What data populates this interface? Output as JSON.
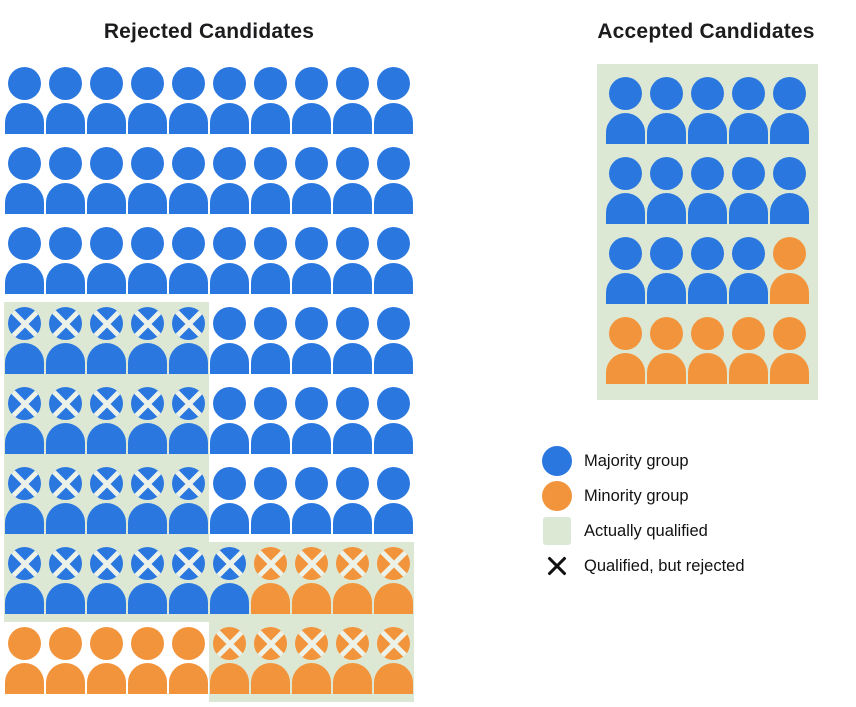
{
  "rejected": {
    "title": "Rejected Candidates",
    "rows": [
      [
        "b",
        "b",
        "b",
        "b",
        "b",
        "b",
        "b",
        "b",
        "b",
        "b"
      ],
      [
        "b",
        "b",
        "b",
        "b",
        "b",
        "b",
        "b",
        "b",
        "b",
        "b"
      ],
      [
        "b",
        "b",
        "b",
        "b",
        "b",
        "b",
        "b",
        "b",
        "b",
        "b"
      ],
      [
        "bxq",
        "bxq",
        "bxq",
        "bxq",
        "bxq",
        "b",
        "b",
        "b",
        "b",
        "b"
      ],
      [
        "bxq",
        "bxq",
        "bxq",
        "bxq",
        "bxq",
        "b",
        "b",
        "b",
        "b",
        "b"
      ],
      [
        "bxq",
        "bxq",
        "bxq",
        "bxq",
        "bxq",
        "b",
        "b",
        "b",
        "b",
        "b"
      ],
      [
        "bxq",
        "bxq",
        "bxq",
        "bxq",
        "bxq",
        "bxq",
        "oxq",
        "oxq",
        "oxq",
        "oxq"
      ],
      [
        "o",
        "o",
        "o",
        "o",
        "o",
        "oxq",
        "oxq",
        "oxq",
        "oxq",
        "oxq"
      ]
    ]
  },
  "accepted": {
    "title": "Accepted Candidates",
    "rows": [
      [
        "b",
        "b",
        "b",
        "b",
        "b"
      ],
      [
        "b",
        "b",
        "b",
        "b",
        "b"
      ],
      [
        "b",
        "b",
        "b",
        "b",
        "o"
      ],
      [
        "o",
        "o",
        "o",
        "o",
        "o"
      ]
    ]
  },
  "legend": {
    "items": [
      {
        "icon": "majority-group-icon",
        "label": "Majority group"
      },
      {
        "icon": "minority-group-icon",
        "label": "Minority group"
      },
      {
        "icon": "actually-qualified-swatch-icon",
        "label": "Actually qualified"
      },
      {
        "icon": "qualified-but-rejected-x-icon",
        "label": "Qualified, but rejected"
      }
    ]
  },
  "token_key": {
    "b": "majority group (blue person)",
    "o": "minority group (orange person)",
    "x": "X mark on head (qualified, but rejected)",
    "q": "green highlight (actually qualified)"
  },
  "colors": {
    "majority_blue": "#2b77e0",
    "minority_orange": "#f2943b",
    "qualified_green": "#dde8d4",
    "cross_mark": "#edf2e9",
    "legend_x": "#111111",
    "title_text": "#1c1c1e"
  }
}
